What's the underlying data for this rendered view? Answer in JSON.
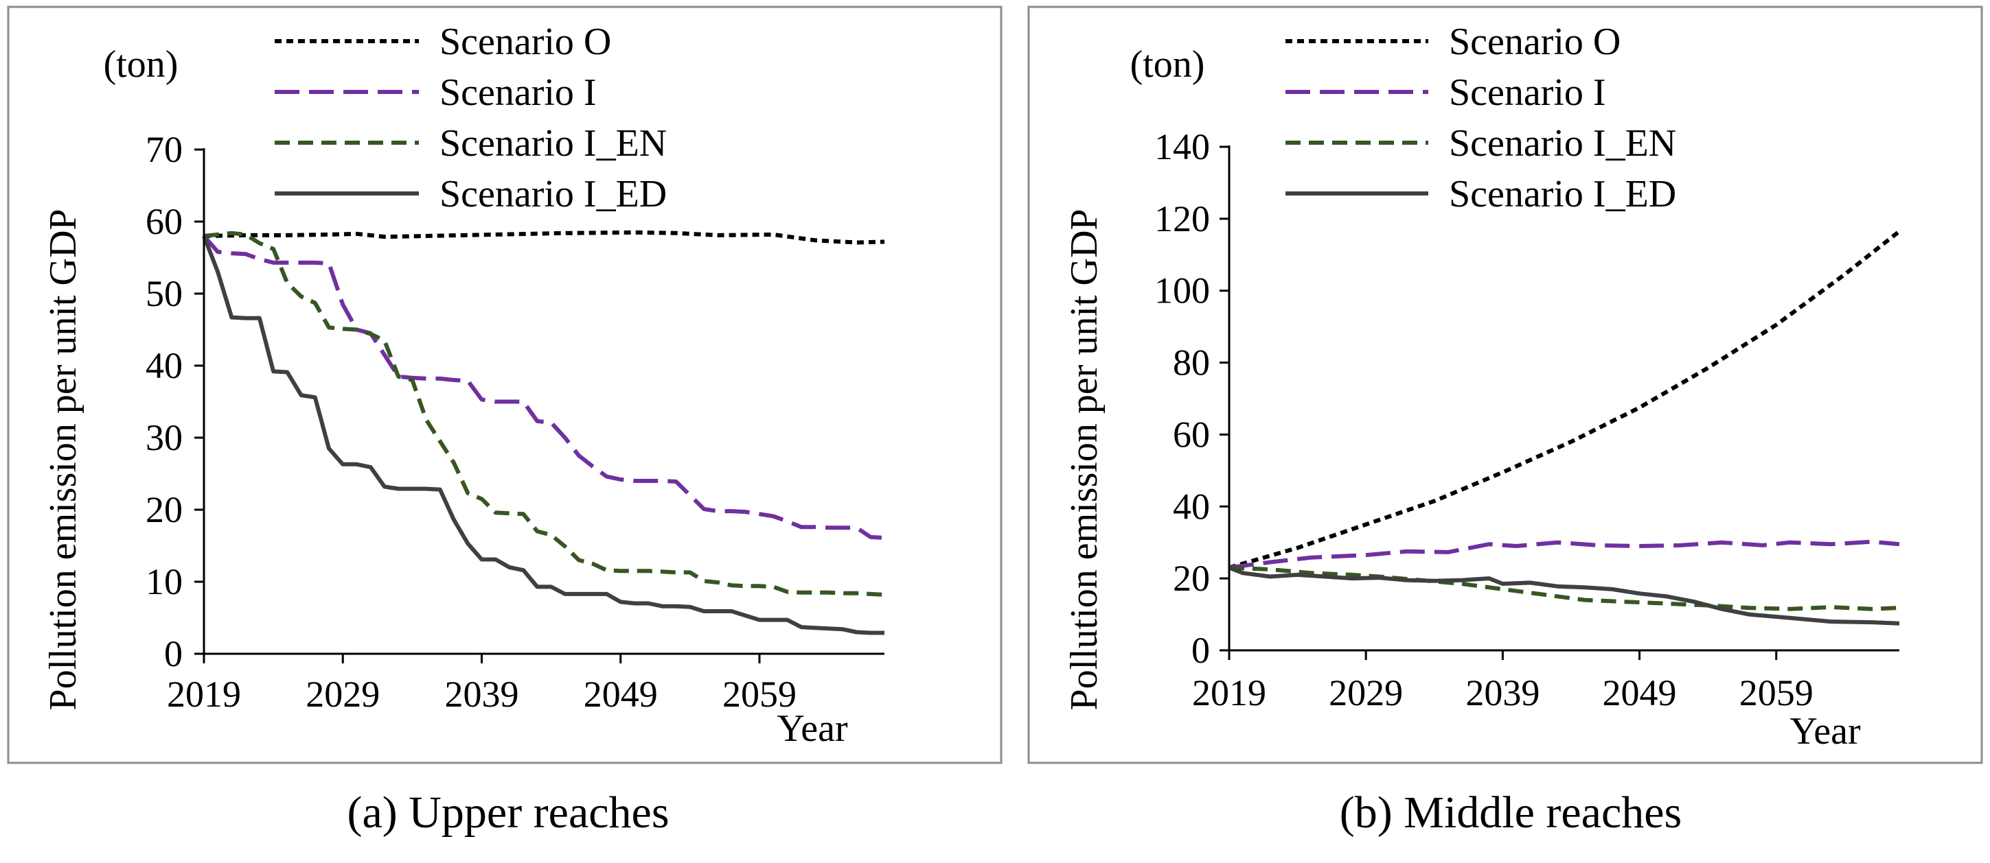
{
  "figure": {
    "captions": [
      "(a) Upper reaches",
      "(b) Middle reaches"
    ]
  },
  "chart_data": [
    {
      "type": "line",
      "title": "(a) Upper reaches",
      "xlabel": "Year",
      "ylabel": "Pollution emission per unit GDP",
      "unit": "(ton)",
      "xlim": [
        2019,
        2068
      ],
      "ylim": [
        0,
        70
      ],
      "xticks": [
        2019,
        2029,
        2039,
        2049,
        2059
      ],
      "yticks": [
        0,
        10,
        20,
        30,
        40,
        50,
        60,
        70
      ],
      "legend_position": "top-center",
      "series": [
        {
          "name": "Scenario O",
          "color": "#000000",
          "dash": "short-dash",
          "x": [
            2019,
            2022,
            2025,
            2028,
            2030,
            2032,
            2035,
            2040,
            2045,
            2050,
            2053,
            2056,
            2060,
            2063,
            2066,
            2068
          ],
          "y": [
            58.0,
            58.1,
            58.1,
            58.2,
            58.3,
            57.9,
            58.0,
            58.2,
            58.4,
            58.5,
            58.4,
            58.1,
            58.2,
            57.4,
            57.1,
            57.2
          ]
        },
        {
          "name": "Scenario I",
          "color": "#7030a0",
          "dash": "long-dash",
          "x": [
            2019,
            2020,
            2021,
            2022,
            2023,
            2024,
            2025,
            2026,
            2027,
            2028,
            2029,
            2030,
            2031,
            2032,
            2033,
            2034,
            2035,
            2036,
            2037,
            2038,
            2039,
            2040,
            2041,
            2042,
            2043,
            2044,
            2045,
            2046,
            2047,
            2048,
            2049,
            2050,
            2051,
            2052,
            2053,
            2054,
            2055,
            2056,
            2057,
            2058,
            2059,
            2060,
            2061,
            2062,
            2063,
            2064,
            2065,
            2066,
            2067,
            2068
          ],
          "y": [
            58.0,
            55.8,
            55.6,
            55.5,
            54.8,
            54.3,
            54.3,
            54.3,
            54.3,
            54.2,
            48.5,
            45.0,
            44.5,
            41.5,
            38.5,
            38.3,
            38.2,
            38.2,
            38.0,
            37.9,
            35.3,
            35.0,
            35.0,
            35.0,
            32.3,
            32.1,
            30.0,
            27.5,
            26.0,
            24.6,
            24.2,
            24.0,
            24.0,
            24.0,
            23.9,
            22.0,
            20.1,
            19.8,
            19.8,
            19.7,
            19.4,
            19.1,
            18.4,
            17.6,
            17.6,
            17.5,
            17.5,
            17.5,
            16.2,
            16.1
          ]
        },
        {
          "name": "Scenario I_EN",
          "color": "#375623",
          "dash": "medium-dash",
          "x": [
            2019,
            2020,
            2021,
            2022,
            2023,
            2024,
            2025,
            2026,
            2027,
            2028,
            2029,
            2030,
            2031,
            2032,
            2033,
            2034,
            2035,
            2036,
            2037,
            2038,
            2039,
            2040,
            2041,
            2042,
            2043,
            2044,
            2045,
            2046,
            2047,
            2048,
            2049,
            2050,
            2051,
            2052,
            2053,
            2054,
            2055,
            2056,
            2057,
            2058,
            2059,
            2060,
            2061,
            2062,
            2063,
            2064,
            2065,
            2066,
            2067,
            2068
          ],
          "y": [
            58.0,
            58.2,
            58.4,
            58.2,
            57.0,
            56.2,
            51.5,
            49.6,
            48.7,
            45.3,
            45.1,
            45.0,
            44.4,
            43.5,
            38.5,
            38.0,
            32.5,
            29.5,
            26.5,
            22.3,
            21.5,
            19.6,
            19.5,
            19.4,
            17.0,
            16.5,
            14.9,
            13.0,
            12.5,
            11.6,
            11.5,
            11.5,
            11.5,
            11.4,
            11.3,
            11.3,
            10.1,
            9.9,
            9.5,
            9.4,
            9.4,
            9.3,
            8.6,
            8.5,
            8.5,
            8.5,
            8.4,
            8.4,
            8.3,
            8.2
          ]
        },
        {
          "name": "Scenario I_ED",
          "color": "#404040",
          "dash": "solid",
          "x": [
            2019,
            2020,
            2021,
            2022,
            2023,
            2024,
            2025,
            2026,
            2027,
            2028,
            2029,
            2030,
            2031,
            2032,
            2033,
            2034,
            2035,
            2036,
            2037,
            2038,
            2039,
            2040,
            2041,
            2042,
            2043,
            2044,
            2045,
            2046,
            2047,
            2048,
            2049,
            2050,
            2051,
            2052,
            2053,
            2054,
            2055,
            2056,
            2057,
            2058,
            2059,
            2060,
            2061,
            2062,
            2063,
            2064,
            2065,
            2066,
            2067,
            2068
          ],
          "y": [
            58.0,
            53.0,
            46.7,
            46.6,
            46.6,
            39.2,
            39.1,
            35.9,
            35.6,
            28.5,
            26.3,
            26.3,
            25.9,
            23.2,
            22.9,
            22.9,
            22.9,
            22.8,
            18.6,
            15.3,
            13.1,
            13.1,
            12.0,
            11.6,
            9.3,
            9.3,
            8.3,
            8.3,
            8.3,
            8.3,
            7.2,
            7.0,
            7.0,
            6.6,
            6.6,
            6.5,
            5.9,
            5.9,
            5.9,
            5.3,
            4.7,
            4.7,
            4.7,
            3.7,
            3.6,
            3.5,
            3.4,
            3.0,
            2.9,
            2.9
          ]
        }
      ]
    },
    {
      "type": "line",
      "title": "(b) Middle reaches",
      "xlabel": "Year",
      "ylabel": "Pollution emission per unit GDP",
      "unit": "(ton)",
      "xlim": [
        2019,
        2068
      ],
      "ylim": [
        0,
        140
      ],
      "xticks": [
        2019,
        2029,
        2039,
        2049,
        2059
      ],
      "yticks": [
        0,
        20,
        40,
        60,
        80,
        100,
        120,
        140
      ],
      "legend_position": "top-center",
      "series": [
        {
          "name": "Scenario O",
          "color": "#000000",
          "dash": "short-dash",
          "x": [
            2019,
            2024,
            2029,
            2034,
            2039,
            2044,
            2049,
            2054,
            2059,
            2064,
            2068
          ],
          "y": [
            23,
            28.5,
            35,
            41.5,
            49.5,
            58,
            67.5,
            78.5,
            90.5,
            104.5,
            116.5
          ]
        },
        {
          "name": "Scenario I",
          "color": "#7030a0",
          "dash": "long-dash",
          "x": [
            2019,
            2022,
            2025,
            2029,
            2032,
            2035,
            2038,
            2040,
            2043,
            2046,
            2049,
            2052,
            2055,
            2058,
            2060,
            2063,
            2066,
            2068
          ],
          "y": [
            23,
            24.5,
            25.8,
            26.5,
            27.5,
            27.3,
            29.5,
            29.0,
            30.0,
            29.2,
            29.0,
            29.2,
            30.0,
            29.2,
            30.0,
            29.5,
            30.2,
            29.5
          ]
        },
        {
          "name": "Scenario I_EN",
          "color": "#375623",
          "dash": "medium-dash",
          "x": [
            2019,
            2022,
            2025,
            2028,
            2030,
            2033,
            2036,
            2039,
            2042,
            2045,
            2048,
            2051,
            2054,
            2057,
            2060,
            2063,
            2066,
            2068
          ],
          "y": [
            23,
            22.5,
            21.5,
            21.0,
            20.5,
            19.5,
            18.5,
            17.0,
            15.5,
            14.0,
            13.5,
            13.0,
            12.5,
            11.8,
            11.5,
            12.0,
            11.5,
            11.8
          ]
        },
        {
          "name": "Scenario I_ED",
          "color": "#404040",
          "dash": "solid",
          "x": [
            2019,
            2020,
            2022,
            2024,
            2026,
            2028,
            2030,
            2032,
            2034,
            2036,
            2038,
            2039,
            2041,
            2043,
            2045,
            2047,
            2049,
            2051,
            2053,
            2055,
            2057,
            2060,
            2063,
            2066,
            2068
          ],
          "y": [
            23,
            21.5,
            20.5,
            21.0,
            20.5,
            20.0,
            20.2,
            19.5,
            19.3,
            19.5,
            20.0,
            18.5,
            18.8,
            17.8,
            17.5,
            17.0,
            15.8,
            15.0,
            13.5,
            11.5,
            10.0,
            9.0,
            8.0,
            7.8,
            7.5
          ]
        }
      ]
    }
  ]
}
